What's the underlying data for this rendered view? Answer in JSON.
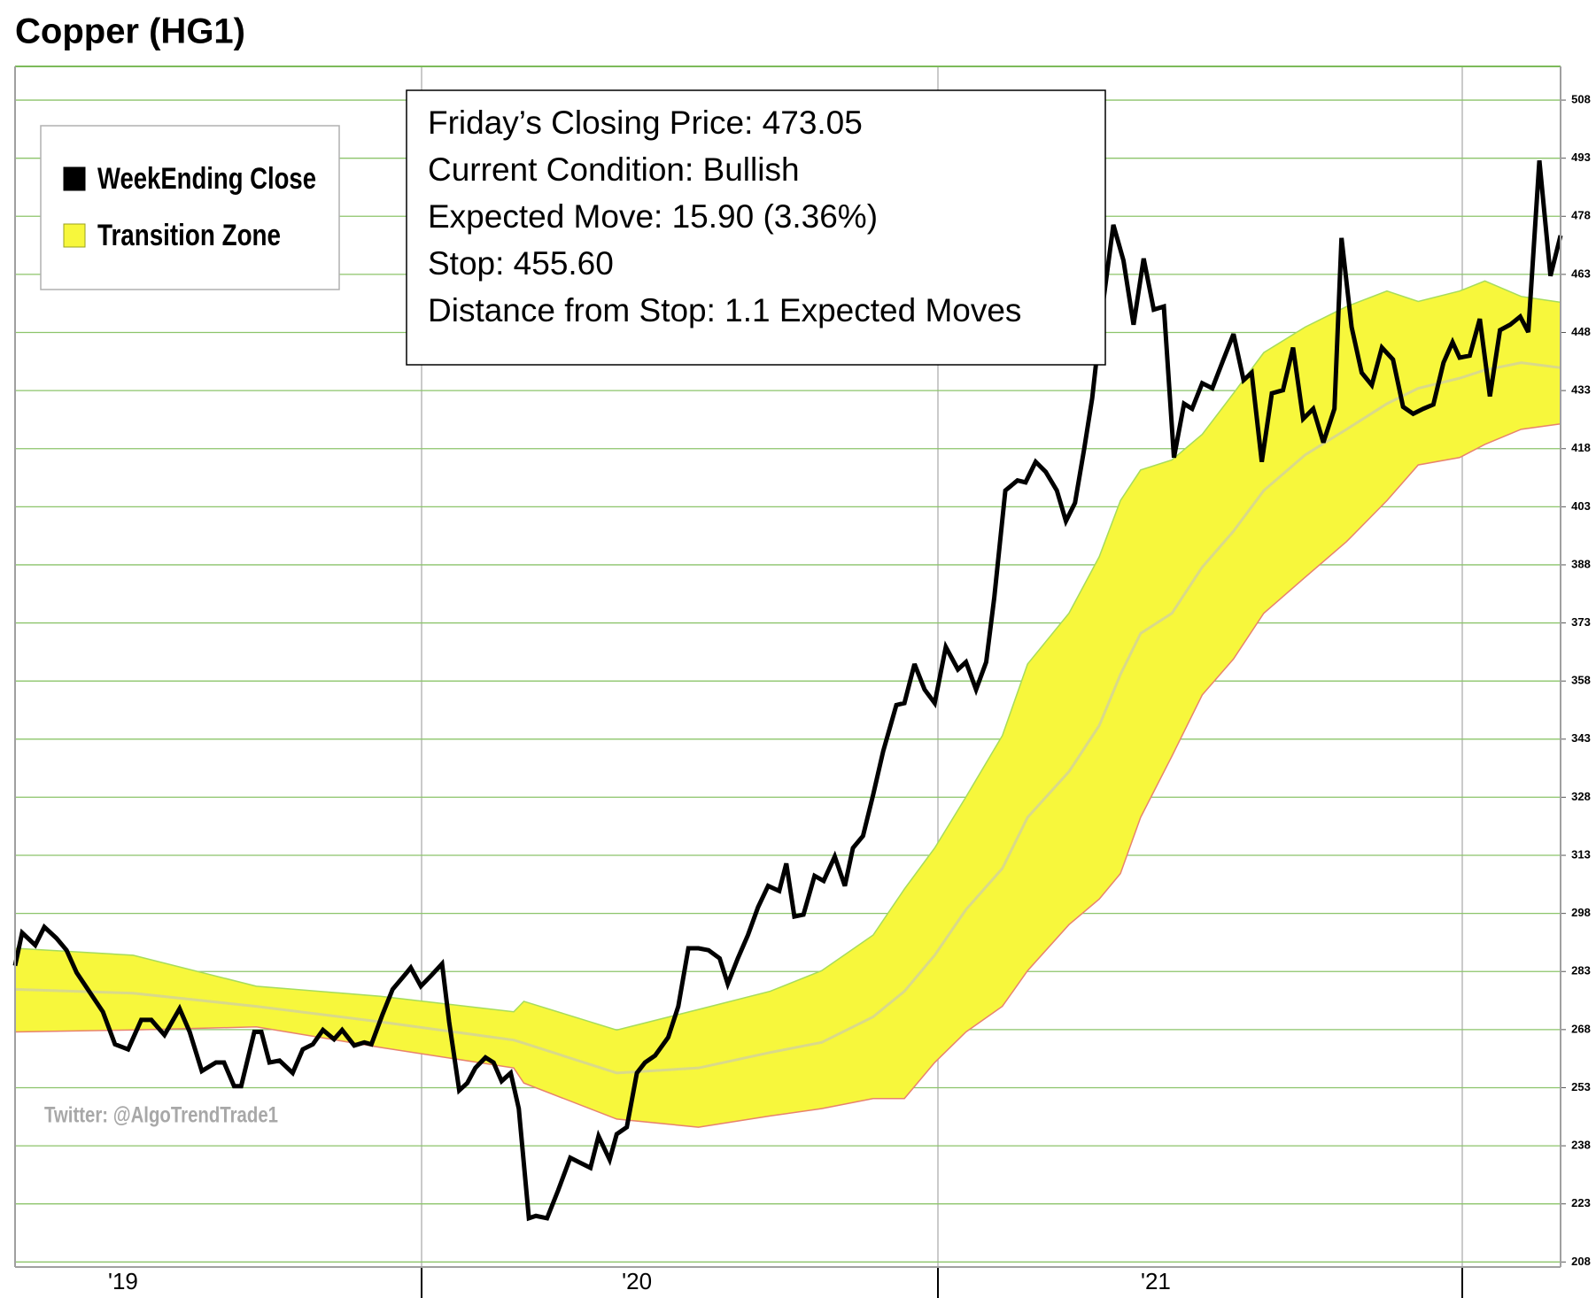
{
  "chart_data": {
    "type": "line",
    "title": "Copper (HG1)",
    "annotation": [
      "Friday’s Closing Price: 473.05",
      "Current Condition: Bullish",
      "Expected Move: 15.90 (3.36%)",
      "Stop: 455.60",
      "Distance from Stop: 1.1 Expected Moves"
    ],
    "watermark": "Twitter: @AlgoTrendTrade1",
    "legend": "top-left",
    "grid": true,
    "xlim": [
      0,
      153.1
    ],
    "xticks": [
      {
        "value": 10.7,
        "label": "'19"
      },
      {
        "value": 61.6,
        "label": "'20"
      },
      {
        "value": 113.0,
        "label": "'21"
      }
    ],
    "ylim": [
      206.7,
      516.7
    ],
    "yticks": [
      208,
      223,
      238,
      253,
      268,
      283,
      298,
      313,
      328,
      343,
      358,
      373,
      388,
      403,
      418,
      433,
      448,
      463,
      478,
      493,
      508
    ],
    "series": [
      {
        "name": "WeekEnding Close",
        "color": "#000000",
        "x": [
          0,
          0.7,
          2.0,
          2.9,
          4.1,
          5.1,
          6.1,
          8.7,
          9.9,
          11.2,
          12.5,
          13.5,
          14.8,
          16.3,
          17.3,
          18.5,
          19.9,
          20.7,
          21.7,
          22.4,
          23.7,
          24.4,
          25.2,
          26.2,
          27.5,
          28.5,
          29.5,
          30.5,
          31.6,
          32.4,
          33.6,
          34.6,
          35.3,
          36.4,
          37.4,
          38.7,
          39.2,
          40.2,
          41.2,
          42.3,
          43.0,
          44.0,
          44.8,
          45.6,
          46.6,
          47.4,
          48.2,
          49.1,
          49.9,
          50.9,
          51.6,
          52.7,
          53.8,
          55.0,
          56.0,
          57.0,
          57.8,
          58.9,
          59.6,
          60.6,
          61.6,
          62.4,
          63.4,
          64.7,
          65.7,
          66.7,
          67.7,
          68.7,
          69.8,
          70.6,
          71.6,
          72.6,
          73.6,
          74.6,
          75.7,
          76.4,
          77.2,
          78.1,
          79.2,
          80.1,
          81.2,
          82.2,
          83.0,
          84.0,
          85.0,
          86.0,
          87.3,
          88.1,
          89.1,
          90.1,
          91.1,
          92.2,
          93.4,
          94.2,
          95.2,
          96.2,
          97.0,
          98.1,
          99.3,
          100.1,
          101.1,
          102.1,
          103.2,
          104.1,
          105.0,
          105.9,
          106.7,
          107.6,
          108.8,
          109.8,
          110.8,
          111.8,
          112.8,
          113.8,
          114.8,
          115.8,
          116.6,
          117.6,
          118.6,
          119.7,
          120.7,
          121.7,
          122.5,
          123.5,
          124.5,
          125.6,
          126.6,
          127.6,
          128.6,
          129.6,
          130.7,
          131.4,
          132.4,
          133.4,
          134.4,
          135.4,
          136.5,
          137.5,
          138.5,
          139.5,
          140.5,
          141.5,
          142.4,
          143.1,
          144.1,
          145.1,
          146.1,
          147.1,
          148.1,
          149.1,
          149.9,
          151.0,
          152.1,
          153.1
        ],
        "values": [
          284.5,
          293.0,
          289.8,
          294.5,
          291.6,
          288.5,
          282.7,
          272.6,
          264.2,
          262.9,
          270.5,
          270.5,
          266.6,
          273.4,
          267.4,
          257.3,
          259.5,
          259.5,
          253.4,
          253.4,
          267.4,
          267.4,
          259.5,
          260.0,
          256.8,
          262.9,
          264.2,
          267.9,
          265.5,
          267.9,
          263.9,
          264.7,
          264.2,
          271.9,
          278.4,
          282.4,
          284.0,
          279.2,
          281.9,
          285.0,
          270.0,
          252.3,
          254.2,
          258.1,
          260.8,
          259.5,
          254.7,
          256.8,
          247.6,
          219.3,
          219.9,
          219.3,
          226.5,
          234.9,
          233.6,
          232.3,
          240.5,
          234.4,
          241.0,
          242.8,
          256.8,
          259.5,
          261.3,
          266.0,
          274.0,
          289.0,
          289.0,
          288.5,
          286.4,
          279.8,
          286.4,
          292.4,
          299.6,
          305.1,
          303.8,
          310.9,
          297.2,
          297.7,
          307.7,
          306.4,
          312.7,
          305.1,
          314.9,
          318.0,
          328.6,
          339.9,
          351.8,
          352.3,
          362.4,
          355.8,
          352.3,
          366.8,
          361.0,
          362.9,
          355.8,
          362.9,
          379.5,
          407.2,
          409.8,
          409.3,
          414.6,
          412.0,
          407.2,
          399.3,
          404.0,
          417.8,
          431.0,
          452.1,
          475.8,
          466.6,
          450.0,
          467.1,
          453.9,
          454.7,
          415.7,
          429.6,
          428.3,
          434.9,
          433.6,
          441.0,
          447.6,
          435.7,
          437.6,
          414.6,
          432.3,
          433.1,
          444.1,
          425.7,
          428.3,
          419.6,
          428.3,
          472.4,
          449.4,
          437.6,
          434.4,
          444.1,
          441.0,
          428.8,
          427.0,
          428.3,
          429.4,
          440.2,
          445.5,
          441.5,
          442.0,
          451.5,
          431.5,
          448.6,
          450.0,
          452.1,
          448.1,
          492.4,
          462.6,
          473.05
        ]
      },
      {
        "name": "Transition Zone",
        "color": "#f7f73c",
        "upper_color": "#a6dc5c",
        "lower_color": "#e8826e",
        "mid_color": "#d9d98a",
        "x": [
          0,
          11.7,
          23.9,
          36.2,
          49.4,
          50.4,
          59.6,
          67.7,
          74.8,
          79.9,
          85.0,
          88.1,
          91.1,
          94.2,
          97.8,
          100.3,
          104.4,
          107.4,
          109.5,
          111.5,
          114.6,
          117.6,
          120.7,
          123.7,
          127.8,
          131.9,
          135.9,
          139.0,
          143.1,
          145.6,
          149.2,
          153.1
        ],
        "upper": [
          289.0,
          287.2,
          279.2,
          276.6,
          272.6,
          275.3,
          267.9,
          273.2,
          277.9,
          283.2,
          292.4,
          304.3,
          314.9,
          328.1,
          343.9,
          362.4,
          375.5,
          390.1,
          404.6,
          412.5,
          415.1,
          421.7,
          432.3,
          442.8,
          449.4,
          454.7,
          458.7,
          456.0,
          458.7,
          461.3,
          457.3,
          455.8
        ],
        "lower": [
          267.4,
          267.9,
          268.7,
          263.4,
          258.1,
          254.2,
          244.9,
          242.8,
          245.7,
          247.6,
          250.2,
          250.2,
          259.5,
          267.4,
          274.0,
          283.2,
          295.1,
          301.7,
          308.3,
          322.8,
          338.6,
          354.4,
          363.7,
          375.5,
          384.8,
          394.0,
          404.6,
          413.8,
          415.7,
          419.1,
          423.0,
          424.4
        ],
        "mid": [
          278.4,
          277.4,
          274.0,
          270.0,
          265.3,
          264.5,
          256.8,
          258.1,
          262.1,
          264.7,
          271.3,
          277.9,
          287.2,
          299.0,
          309.6,
          322.8,
          334.6,
          346.5,
          359.7,
          370.3,
          375.5,
          387.4,
          396.7,
          407.2,
          416.4,
          423.0,
          429.6,
          433.6,
          436.2,
          438.3,
          440.2,
          438.9
        ]
      }
    ]
  }
}
